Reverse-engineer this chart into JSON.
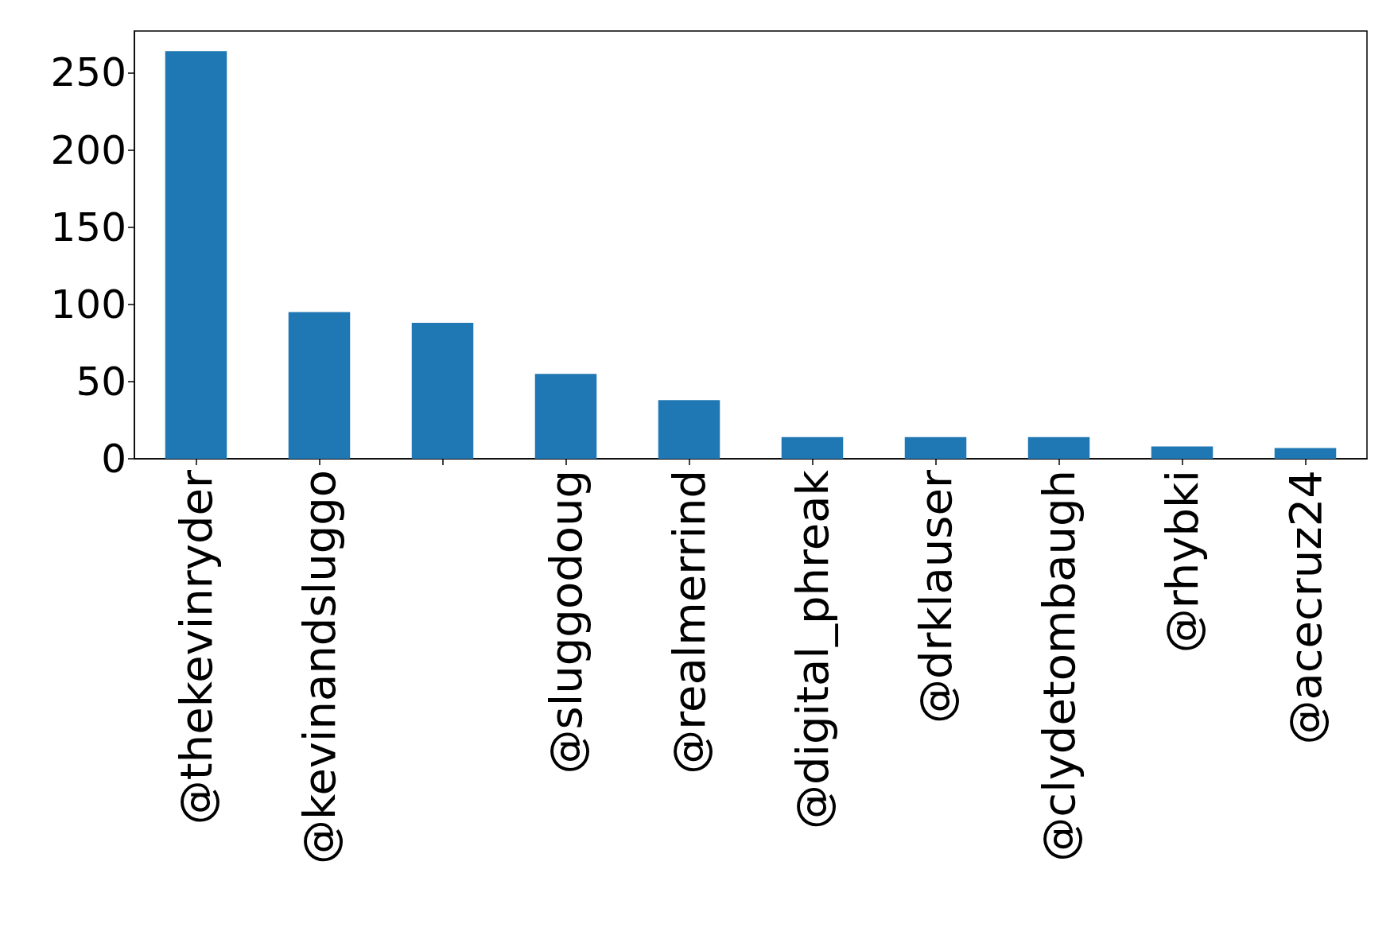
{
  "chart_data": {
    "type": "bar",
    "categories": [
      "@thekevinryder",
      "@kevinandsluggo",
      null,
      "@sluggodoug",
      "@realmerrind",
      "@digital_phreak",
      "@drklauser",
      "@clydetombaugh",
      "@rhybki",
      "@acecruz24"
    ],
    "values": [
      264,
      95,
      88,
      55,
      38,
      14,
      14,
      14,
      8,
      7
    ],
    "color": "#1f77b4",
    "ylim": [
      0,
      277
    ],
    "yticks": [
      0,
      50,
      100,
      150,
      200,
      250
    ],
    "grid": false
  }
}
